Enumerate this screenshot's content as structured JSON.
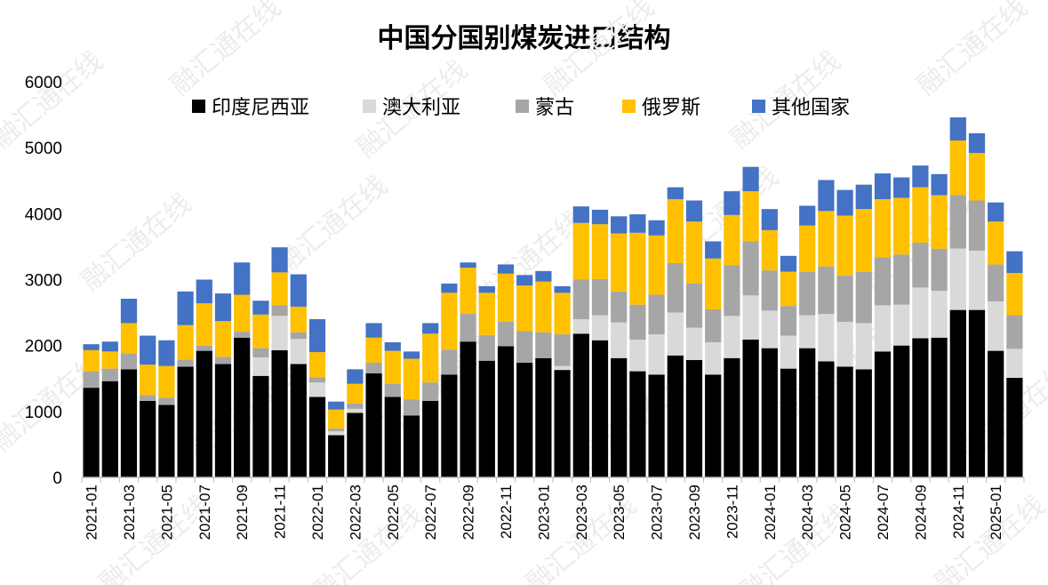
{
  "chart_data": {
    "type": "bar",
    "stacked": true,
    "title": "中国分国别煤炭进口结构",
    "xlabel": "",
    "ylabel": "",
    "ylim": [
      0,
      6000
    ],
    "yticks": [
      0,
      1000,
      2000,
      3000,
      4000,
      5000,
      6000
    ],
    "legend_position": "top",
    "categories": [
      "2021-01",
      "2021-02",
      "2021-03",
      "2021-04",
      "2021-05",
      "2021-06",
      "2021-07",
      "2021-08",
      "2021-09",
      "2021-10",
      "2021-11",
      "2021-12",
      "2022-01",
      "2022-02",
      "2022-03",
      "2022-04",
      "2022-05",
      "2022-06",
      "2022-07",
      "2022-08",
      "2022-09",
      "2022-10",
      "2022-11",
      "2022-12",
      "2023-01",
      "2023-02",
      "2023-03",
      "2023-04",
      "2023-05",
      "2023-06",
      "2023-07",
      "2023-08",
      "2023-09",
      "2023-10",
      "2023-11",
      "2023-12",
      "2024-01",
      "2024-02",
      "2024-03",
      "2024-04",
      "2024-05",
      "2024-06",
      "2024-07",
      "2024-08",
      "2024-09",
      "2024-10",
      "2024-11",
      "2024-12",
      "2025-01",
      "2025-02"
    ],
    "tick_labels": [
      "2021-01",
      "2021-03",
      "2021-05",
      "2021-07",
      "2021-09",
      "2021-11",
      "2022-01",
      "2022-03",
      "2022-05",
      "2022-07",
      "2022-09",
      "2022-11",
      "2023-01",
      "2023-03",
      "2023-05",
      "2023-07",
      "2023-09",
      "2023-11",
      "2024-01",
      "2024-03",
      "2024-05",
      "2024-07",
      "2024-09",
      "2024-11",
      "2025-01"
    ],
    "series": [
      {
        "name": "印度尼西亚",
        "color": "#000000",
        "values": [
          1360,
          1460,
          1640,
          1160,
          1100,
          1680,
          1920,
          1720,
          2120,
          1540,
          1930,
          1720,
          1220,
          640,
          980,
          1580,
          1220,
          940,
          1160,
          1560,
          2060,
          1770,
          1990,
          1740,
          1810,
          1630,
          2180,
          2080,
          1810,
          1610,
          1560,
          1850,
          1780,
          1560,
          1810,
          2090,
          1960,
          1650,
          1960,
          1760,
          1680,
          1640,
          1910,
          2000,
          2110,
          2120,
          2540,
          2540,
          1920,
          1510
        ]
      },
      {
        "name": "澳大利亚",
        "color": "#d9d9d9",
        "values": [
          0,
          0,
          0,
          0,
          0,
          0,
          0,
          0,
          0,
          280,
          520,
          380,
          220,
          60,
          60,
          0,
          0,
          0,
          0,
          0,
          0,
          0,
          0,
          0,
          0,
          60,
          220,
          380,
          540,
          480,
          610,
          650,
          490,
          490,
          640,
          670,
          570,
          500,
          500,
          720,
          680,
          700,
          700,
          620,
          770,
          710,
          930,
          900,
          750,
          440
        ]
      },
      {
        "name": "蒙古",
        "color": "#a6a6a6",
        "values": [
          250,
          190,
          240,
          90,
          110,
          110,
          80,
          110,
          90,
          140,
          160,
          100,
          80,
          40,
          80,
          160,
          200,
          240,
          280,
          380,
          420,
          390,
          370,
          480,
          390,
          480,
          600,
          550,
          470,
          530,
          600,
          750,
          670,
          500,
          770,
          820,
          610,
          450,
          660,
          720,
          700,
          780,
          730,
          760,
          680,
          640,
          810,
          760,
          560,
          510
        ]
      },
      {
        "name": "俄罗斯",
        "color": "#ffc000",
        "values": [
          320,
          260,
          460,
          460,
          480,
          520,
          640,
          540,
          560,
          510,
          500,
          390,
          380,
          290,
          300,
          380,
          500,
          620,
          740,
          860,
          700,
          640,
          730,
          690,
          770,
          630,
          860,
          830,
          880,
          1090,
          900,
          970,
          940,
          770,
          760,
          760,
          610,
          520,
          700,
          840,
          910,
          950,
          880,
          860,
          840,
          810,
          830,
          720,
          650,
          640
        ]
      },
      {
        "name": "其他国家",
        "color": "#4472c4",
        "values": [
          90,
          150,
          370,
          440,
          390,
          510,
          360,
          420,
          490,
          210,
          380,
          490,
          500,
          120,
          220,
          220,
          130,
          110,
          160,
          140,
          80,
          100,
          140,
          160,
          160,
          100,
          250,
          220,
          260,
          280,
          230,
          180,
          320,
          260,
          360,
          370,
          320,
          240,
          300,
          470,
          390,
          370,
          390,
          310,
          330,
          320,
          350,
          300,
          290,
          330
        ]
      }
    ]
  },
  "watermark": "融汇通在线"
}
